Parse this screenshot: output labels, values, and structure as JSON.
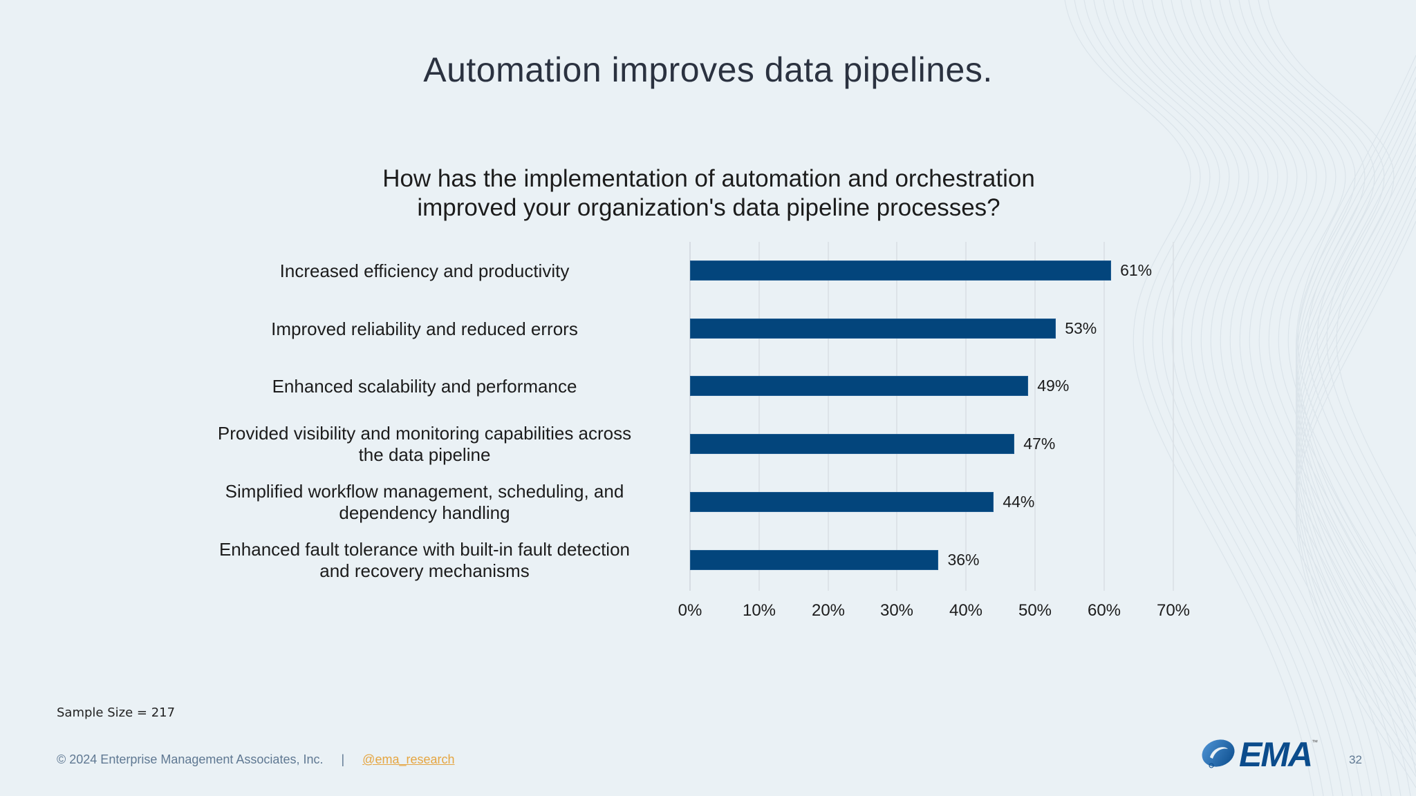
{
  "slide": {
    "title": "Automation improves data pipelines.",
    "page_number": "32"
  },
  "chart": {
    "title_line1": "How has the implementation of automation and orchestration",
    "title_line2": "improved your organization's data pipeline processes?",
    "bar_color": "#03457c",
    "items": [
      {
        "label_line1": "Increased efficiency and productivity",
        "label_line2": "",
        "value": 61,
        "value_label": "61%"
      },
      {
        "label_line1": "Improved reliability and reduced errors",
        "label_line2": "",
        "value": 53,
        "value_label": "53%"
      },
      {
        "label_line1": "Enhanced scalability and performance",
        "label_line2": "",
        "value": 49,
        "value_label": "49%"
      },
      {
        "label_line1": "Provided visibility and monitoring capabilities across",
        "label_line2": "the data pipeline",
        "value": 47,
        "value_label": "47%"
      },
      {
        "label_line1": "Simplified workflow management, scheduling, and",
        "label_line2": "dependency handling",
        "value": 44,
        "value_label": "44%"
      },
      {
        "label_line1": "Enhanced fault tolerance with built-in fault detection",
        "label_line2": "and recovery mechanisms",
        "value": 36,
        "value_label": "36%"
      }
    ],
    "ticks": [
      "0%",
      "10%",
      "20%",
      "30%",
      "40%",
      "50%",
      "60%",
      "70%"
    ]
  },
  "chart_data": {
    "type": "bar",
    "orientation": "horizontal",
    "title": "How has the implementation of automation and orchestration improved your organization's data pipeline processes?",
    "categories": [
      "Increased efficiency and productivity",
      "Improved reliability and reduced errors",
      "Enhanced scalability and performance",
      "Provided visibility and monitoring capabilities across the data pipeline",
      "Simplified workflow management, scheduling, and dependency handling",
      "Enhanced fault tolerance with built-in fault detection and recovery mechanisms"
    ],
    "values": [
      61,
      53,
      49,
      47,
      44,
      36
    ],
    "value_labels": [
      "61%",
      "53%",
      "49%",
      "47%",
      "44%",
      "36%"
    ],
    "xlabel": "",
    "ylabel": "",
    "xlim": [
      0,
      70
    ],
    "x_ticks": [
      "0%",
      "10%",
      "20%",
      "30%",
      "40%",
      "50%",
      "60%",
      "70%"
    ],
    "grid": "vertical",
    "legend": "none",
    "colors": [
      "#03457c"
    ]
  },
  "notes": {
    "sample_size": "Sample Size = 217"
  },
  "footer": {
    "copyright": "© 2024 Enterprise Management Associates, Inc.",
    "separator": "|",
    "handle": "@ema_research",
    "handle_color": "#e5a540"
  },
  "logo": {
    "text": "EMA",
    "tm": "™"
  }
}
